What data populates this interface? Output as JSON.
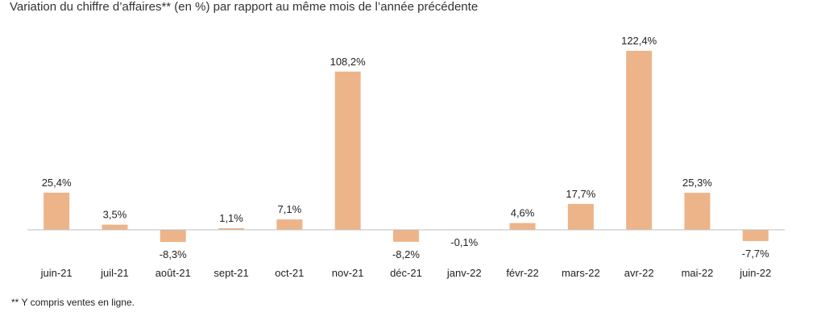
{
  "title": "Variation du chiffre d’affaires** (en %) par rapport au même mois de l’année précédente",
  "footnote": "** Y compris ventes en ligne.",
  "colors": {
    "bar": "#EDB489",
    "axis": "#BFBFBF"
  },
  "chart_data": {
    "type": "bar",
    "title": "Variation du chiffre d’affaires** (en %) par rapport au même mois de l’année précédente",
    "xlabel": "",
    "ylabel": "",
    "grid": false,
    "categories": [
      "juin-21",
      "juil-21",
      "août-21",
      "sept-21",
      "oct-21",
      "nov-21",
      "déc-21",
      "janv-22",
      "févr-22",
      "mars-22",
      "avr-22",
      "mai-22",
      "juin-22"
    ],
    "values": [
      25.4,
      3.5,
      -8.3,
      1.1,
      7.1,
      108.2,
      -8.2,
      -0.1,
      4.6,
      17.7,
      122.4,
      25.3,
      -7.7
    ],
    "value_labels": [
      "25,4%",
      "3,5%",
      "-8,3%",
      "1,1%",
      "7,1%",
      "108,2%",
      "-8,2%",
      "-0,1%",
      "4,6%",
      "17,7%",
      "122,4%",
      "25,3%",
      "-7,7%"
    ]
  }
}
